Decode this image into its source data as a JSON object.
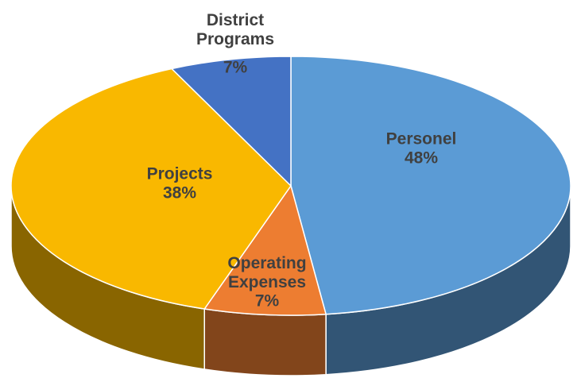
{
  "chart_data": {
    "type": "pie",
    "categories": [
      "Personel",
      "Operating Expenses",
      "Projects",
      "District Programs"
    ],
    "values": [
      48,
      7,
      38,
      7
    ],
    "value_labels": [
      "48%",
      "7%",
      "38%",
      "7%"
    ],
    "colors": [
      "#5b9bd5",
      "#ed7d31",
      "#f9b800",
      "#4472c4"
    ]
  }
}
